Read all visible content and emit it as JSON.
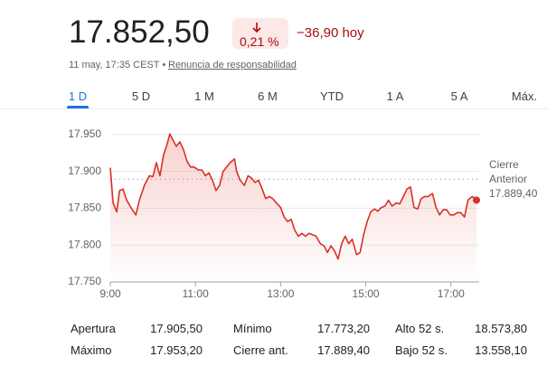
{
  "header": {
    "price": "17.852,50",
    "change_percent": "0,21 %",
    "change_today": "−36,90 hoy",
    "timestamp": "11 may, 17:35 CEST •",
    "disclaimer": "Renuncia de responsabilidad"
  },
  "tabs": [
    "1 D",
    "5 D",
    "1 M",
    "6 M",
    "YTD",
    "1 A",
    "5 A",
    "Máx."
  ],
  "chart_data": {
    "type": "line",
    "x": [
      540,
      544,
      549,
      553,
      558,
      563,
      571,
      576,
      581,
      588,
      595,
      600,
      605,
      610,
      615,
      620,
      624,
      628,
      633,
      638,
      643,
      648,
      653,
      658,
      664,
      669,
      674,
      679,
      684,
      689,
      694,
      699,
      704,
      709,
      715,
      718,
      723,
      729,
      734,
      739,
      744,
      749,
      754,
      759,
      764,
      769,
      774,
      780,
      785,
      790,
      795,
      800,
      805,
      810,
      815,
      820,
      825,
      830,
      836,
      841,
      846,
      851,
      856,
      861,
      866,
      871,
      876,
      881,
      887,
      892,
      897,
      902,
      907,
      912,
      917,
      922,
      927,
      932,
      937,
      943,
      948,
      953,
      958,
      963,
      968,
      973,
      978,
      983,
      988,
      994,
      999,
      1004,
      1009,
      1014,
      1019,
      1024,
      1029,
      1034,
      1039,
      1044,
      1050,
      1056
    ],
    "series": [
      {
        "color": "#d93025",
        "values": [
          17905,
          17857,
          17845,
          17874,
          17876,
          17861,
          17848,
          17841,
          17861,
          17881,
          17894,
          17893,
          17912,
          17894,
          17922,
          17937,
          17951,
          17943,
          17934,
          17940,
          17930,
          17914,
          17906,
          17906,
          17902,
          17902,
          17894,
          17898,
          17888,
          17874,
          17881,
          17900,
          17906,
          17912,
          17917,
          17900,
          17888,
          17881,
          17894,
          17891,
          17885,
          17888,
          17876,
          17863,
          17866,
          17863,
          17857,
          17851,
          17838,
          17832,
          17835,
          17820,
          17812,
          17816,
          17812,
          17816,
          17814,
          17812,
          17802,
          17799,
          17790,
          17799,
          17792,
          17781,
          17802,
          17812,
          17802,
          17808,
          17787,
          17790,
          17814,
          17832,
          17845,
          17849,
          17846,
          17851,
          17853,
          17861,
          17853,
          17857,
          17856,
          17866,
          17876,
          17879,
          17851,
          17849,
          17863,
          17866,
          17866,
          17870,
          17851,
          17841,
          17848,
          17848,
          17841,
          17841,
          17844,
          17844,
          17838,
          17861,
          17866,
          17861
        ]
      }
    ],
    "xlim": [
      540,
      1056
    ],
    "xticks": [
      {
        "value": 540,
        "label": "9:00"
      },
      {
        "value": 660,
        "label": "11:00"
      },
      {
        "value": 780,
        "label": "13:00"
      },
      {
        "value": 900,
        "label": "15:00"
      },
      {
        "value": 1020,
        "label": "17:00"
      }
    ],
    "ylim": [
      17750,
      17967
    ],
    "yticks": [
      {
        "value": 17750,
        "label": "17.750"
      },
      {
        "value": 17800,
        "label": "17.800"
      },
      {
        "value": 17850,
        "label": "17.850"
      },
      {
        "value": 17900,
        "label": "17.900"
      },
      {
        "value": 17950,
        "label": "17.950"
      }
    ],
    "grid": true,
    "reference_line": {
      "value": 17889.4,
      "label": "Cierre Anterior",
      "value_label": "17.889,40"
    }
  },
  "stats": [
    [
      [
        "Apertura",
        "17.905,50"
      ],
      [
        "Mínimo",
        "17.773,20"
      ],
      [
        "Alto 52 s.",
        "18.573,80"
      ]
    ],
    [
      [
        "Máximo",
        "17.953,20"
      ],
      [
        "Cierre ant.",
        "17.889,40"
      ],
      [
        "Bajo 52 s.",
        "13.558,10"
      ]
    ]
  ]
}
